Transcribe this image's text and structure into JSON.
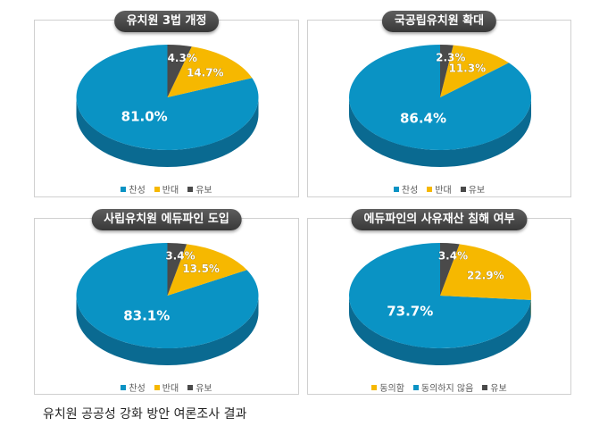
{
  "colors": {
    "blue": "#0a93c4",
    "orange": "#f6b800",
    "gray": "#4a4a4a"
  },
  "caption": "유치원 공공성 강화 방안 여론조사 결과",
  "chart_data": [
    {
      "type": "pie",
      "title": "유치원 3법 개정",
      "slices": [
        {
          "label": "찬성",
          "value": 81.0,
          "display": "81.0%",
          "color": "blue"
        },
        {
          "label": "반대",
          "value": 14.7,
          "display": "14.7%",
          "color": "orange"
        },
        {
          "label": "유보",
          "value": 4.3,
          "display": "4.3%",
          "color": "gray"
        }
      ],
      "legend_position": "bottom"
    },
    {
      "type": "pie",
      "title": "국공립유치원 확대",
      "slices": [
        {
          "label": "찬성",
          "value": 86.4,
          "display": "86.4%",
          "color": "blue"
        },
        {
          "label": "반대",
          "value": 11.3,
          "display": "11.3%",
          "color": "orange"
        },
        {
          "label": "유보",
          "value": 2.3,
          "display": "2.3%",
          "color": "gray"
        }
      ],
      "legend_position": "bottom"
    },
    {
      "type": "pie",
      "title": "사립유치원 에듀파인 도입",
      "slices": [
        {
          "label": "찬성",
          "value": 83.1,
          "display": "83.1%",
          "color": "blue"
        },
        {
          "label": "반대",
          "value": 13.5,
          "display": "13.5%",
          "color": "orange"
        },
        {
          "label": "유보",
          "value": 3.4,
          "display": "3.4%",
          "color": "gray"
        }
      ],
      "legend_position": "bottom"
    },
    {
      "type": "pie",
      "title": "에듀파인의 사유재산 침해 여부",
      "slices": [
        {
          "label": "동의하지 않음",
          "value": 73.7,
          "display": "73.7%",
          "color": "blue"
        },
        {
          "label": "동의함",
          "value": 22.9,
          "display": "22.9%",
          "color": "orange"
        },
        {
          "label": "유보",
          "value": 3.4,
          "display": "3.4%",
          "color": "gray"
        }
      ],
      "legend": [
        {
          "label": "동의함",
          "color": "orange"
        },
        {
          "label": "동의하지 않음",
          "color": "blue"
        },
        {
          "label": "유보",
          "color": "gray"
        }
      ],
      "legend_position": "bottom"
    }
  ]
}
